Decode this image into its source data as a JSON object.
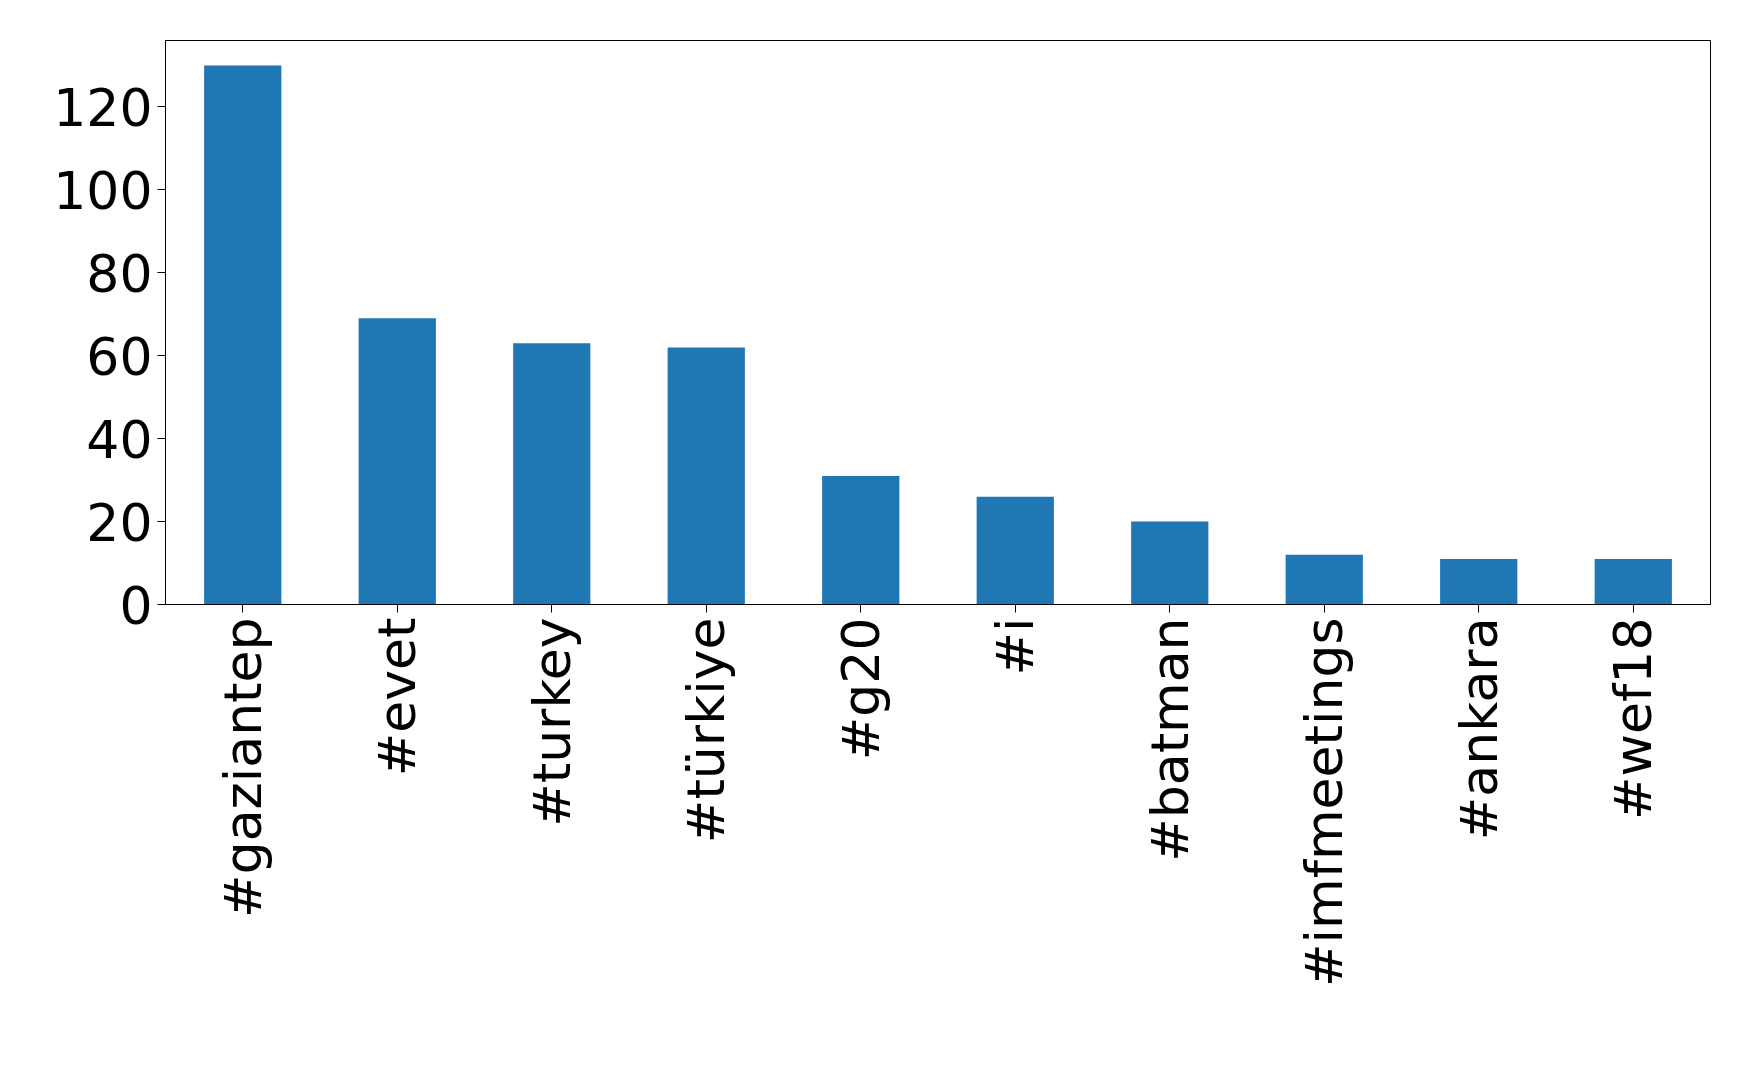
{
  "chart_data": {
    "type": "bar",
    "categories": [
      "#gaziantep",
      "#evet",
      "#turkey",
      "#türkiye",
      "#g20",
      "#i",
      "#batman",
      "#imfmeetings",
      "#ankara",
      "#wef18"
    ],
    "values": [
      130,
      69,
      63,
      62,
      31,
      26,
      20,
      12,
      11,
      11
    ],
    "color": "#1f77b4",
    "ylim": [
      0,
      136
    ],
    "yticks": [
      0,
      20,
      40,
      60,
      80,
      100,
      120
    ],
    "grid": false
  }
}
